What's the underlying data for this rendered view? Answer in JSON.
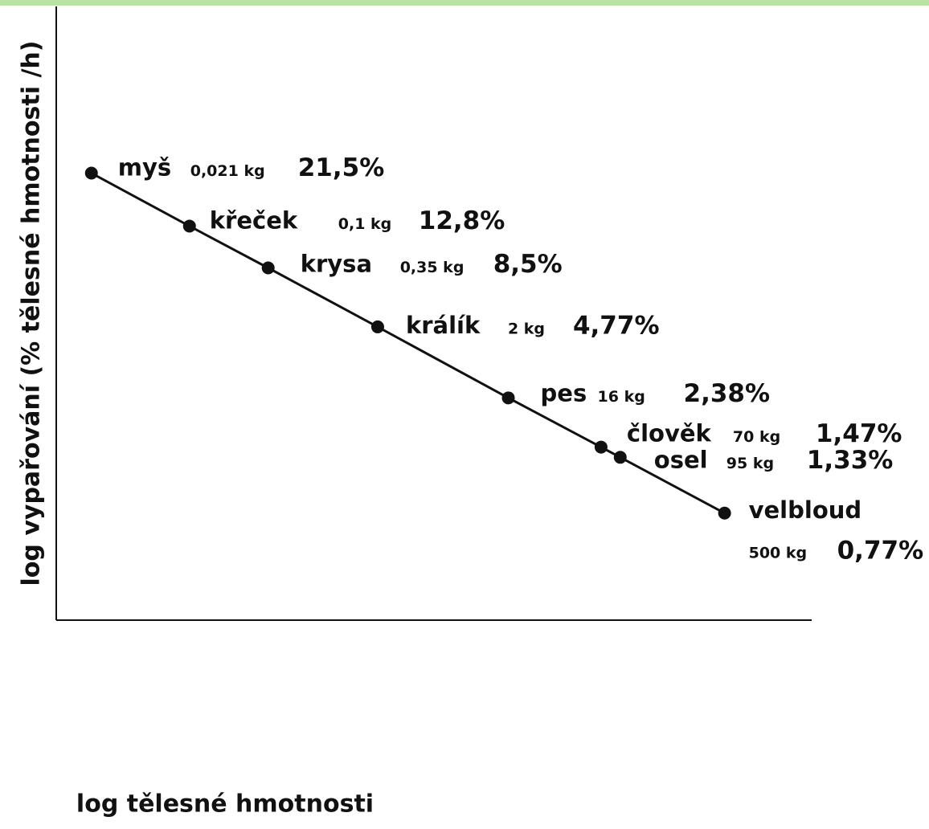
{
  "chart_data": {
    "type": "scatter",
    "x_label": "log tělesné hmotnosti",
    "y_label": "log vypařování (% tělesné hmotnosti /h)",
    "point_labels": [
      "myš",
      "křeček",
      "krysa",
      "králík",
      "pes",
      "člověk",
      "osel",
      "velbloud"
    ],
    "x": [
      0.021,
      0.1,
      0.35,
      2,
      16,
      70,
      95,
      500
    ],
    "x_labels": [
      "0,021 kg",
      "0,1 kg",
      "0,35 kg",
      "2 kg",
      "16 kg",
      "70 kg",
      "95 kg",
      "500 kg"
    ],
    "values": [
      21.5,
      12.8,
      8.5,
      4.77,
      2.38,
      1.47,
      1.33,
      0.77
    ],
    "value_labels": [
      "21,5%",
      "12,8%",
      "8,5%",
      "4,77%",
      "2,38%",
      "1,47%",
      "1,33%",
      "0,77%"
    ],
    "color": "#111111",
    "xscale": "log",
    "yscale": "log",
    "xlim": [
      0.012,
      2000
    ],
    "ylim": [
      0.27,
      110
    ]
  }
}
